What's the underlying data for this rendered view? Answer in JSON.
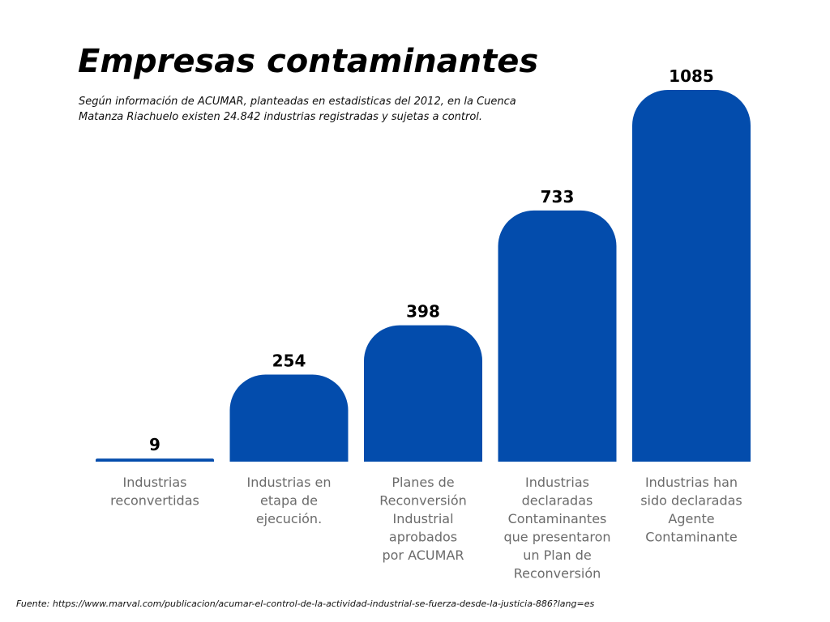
{
  "chart_data": {
    "type": "bar",
    "title": "Empresas contaminantes",
    "subtitle": "Según información de ACUMAR, planteadas en estadisticas del 2012, en la Cuenca Matanza Riachuelo existen 24.842 industrias registradas y sujetas a control.",
    "categories": [
      [
        "Industrias",
        "reconvertidas"
      ],
      [
        "Industrias en",
        "etapa de",
        "ejecución."
      ],
      [
        "Planes de",
        "Reconversión",
        "Industrial",
        "aprobados",
        "por ACUMAR"
      ],
      [
        "Industrias",
        "declaradas",
        "Contaminantes",
        "que presentaron",
        "un Plan de",
        "Reconversión"
      ],
      [
        "Industrias han",
        "sido declaradas",
        "Agente",
        "Contaminante"
      ]
    ],
    "values": [
      9,
      254,
      398,
      733,
      1085
    ],
    "value_labels": [
      "9",
      "254",
      "398",
      "733",
      "1085"
    ],
    "xlabel": "",
    "ylabel": "",
    "ylim": [
      0,
      1085
    ],
    "grid": false,
    "legend": "none"
  },
  "colors": {
    "bar": "#034cac",
    "value_label": "#000000",
    "category_label": "#6b6b6b",
    "title": "#000000"
  },
  "source": "Fuente: https://www.marval.com/publicacion/acumar-el-control-de-la-actividad-industrial-se-fuerza-desde-la-justicia-886?lang=es"
}
